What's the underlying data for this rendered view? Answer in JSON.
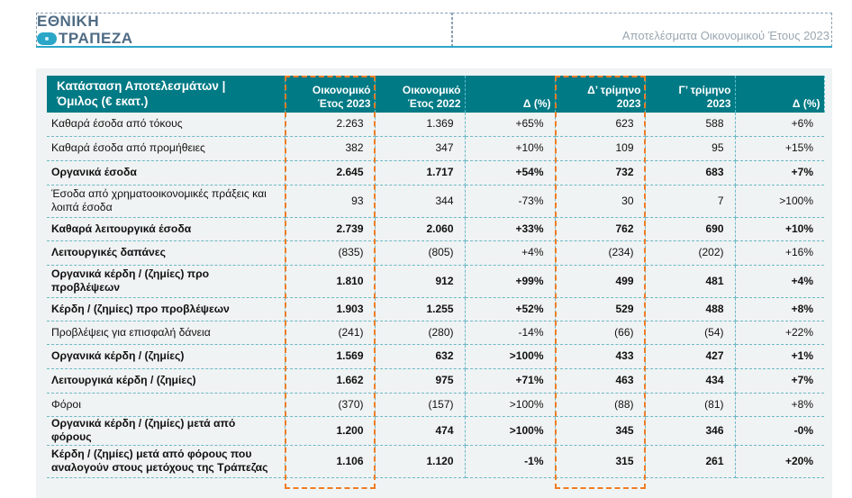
{
  "header": {
    "logo_line1": "ΕΘΝΙΚΗ",
    "logo_line2": "ΤΡΑΠΕΖΑ",
    "title": "Αποτελέσματα Οικονομικού Έτους 2023"
  },
  "colors": {
    "accent": "#007a85",
    "highlight": "#ee7d26",
    "brand": "#2aa6c8"
  },
  "table": {
    "headers": [
      [
        "Κατάσταση Αποτελεσμάτων |",
        "Όμιλος (€ εκατ.)"
      ],
      [
        "Οικονομικό",
        "Έτος 2023"
      ],
      [
        "Οικονομικό",
        "Έτος 2022"
      ],
      [
        "",
        "Δ (%)"
      ],
      [
        "Δ’ τρίμηνο",
        "2023"
      ],
      [
        "Γ’ τρίμηνο",
        "2023"
      ],
      [
        "",
        "Δ (%)"
      ]
    ],
    "rows": [
      {
        "label": "Καθαρά έσοδα από τόκους",
        "bold": false,
        "values": [
          "2.263",
          "1.369",
          "+65%",
          "623",
          "588",
          "+6%"
        ]
      },
      {
        "label": "Καθαρά έσοδα από προμήθειες",
        "bold": false,
        "values": [
          "382",
          "347",
          "+10%",
          "109",
          "95",
          "+15%"
        ]
      },
      {
        "label": "Οργανικά έσοδα",
        "bold": true,
        "values": [
          "2.645",
          "1.717",
          "+54%",
          "732",
          "683",
          "+7%"
        ]
      },
      {
        "label": "Έσοδα από χρηματοοικονομικές πράξεις και λοιπά έσοδα",
        "bold": false,
        "values": [
          "93",
          "344",
          "-73%",
          "30",
          "7",
          ">100%"
        ]
      },
      {
        "label": "Καθαρά λειτουργικά έσοδα",
        "bold": true,
        "values": [
          "2.739",
          "2.060",
          "+33%",
          "762",
          "690",
          "+10%"
        ]
      },
      {
        "label": "Λειτουργικές δαπάνες",
        "bold": true,
        "values": [
          "(835)",
          "(805)",
          "+4%",
          "(234)",
          "(202)",
          "+16%"
        ],
        "bold_values": false
      },
      {
        "label": "Οργανικά κέρδη / (ζημίες) προ προβλέψεων",
        "bold": true,
        "values": [
          "1.810",
          "912",
          "+99%",
          "499",
          "481",
          "+4%"
        ]
      },
      {
        "label": "Κέρδη / (ζημίες) προ προβλέψεων",
        "bold": true,
        "values": [
          "1.903",
          "1.255",
          "+52%",
          "529",
          "488",
          "+8%"
        ]
      },
      {
        "label": "Προβλέψεις για επισφαλή δάνεια",
        "bold": false,
        "values": [
          "(241)",
          "(280)",
          "-14%",
          "(66)",
          "(54)",
          "+22%"
        ]
      },
      {
        "label": "Οργανικά κέρδη / (ζημίες)",
        "bold": true,
        "values": [
          "1.569",
          "632",
          ">100%",
          "433",
          "427",
          "+1%"
        ]
      },
      {
        "label": "Λειτουργικά κέρδη / (ζημίες)",
        "bold": true,
        "values": [
          "1.662",
          "975",
          "+71%",
          "463",
          "434",
          "+7%"
        ]
      },
      {
        "label": "Φόροι",
        "bold": false,
        "values": [
          "(370)",
          "(157)",
          ">100%",
          "(88)",
          "(81)",
          "+8%"
        ]
      },
      {
        "label": "Οργανικά κέρδη / (ζημίες) μετά από φόρους",
        "bold": true,
        "values": [
          "1.200",
          "474",
          ">100%",
          "345",
          "346",
          "-0%"
        ]
      },
      {
        "label": "Κέρδη / (ζημίες) μετά από φόρους που αναλογούν στους μετόχους της Τράπεζας",
        "bold": true,
        "values": [
          "1.106",
          "1.120",
          "-1%",
          "315",
          "261",
          "+20%"
        ]
      }
    ]
  }
}
